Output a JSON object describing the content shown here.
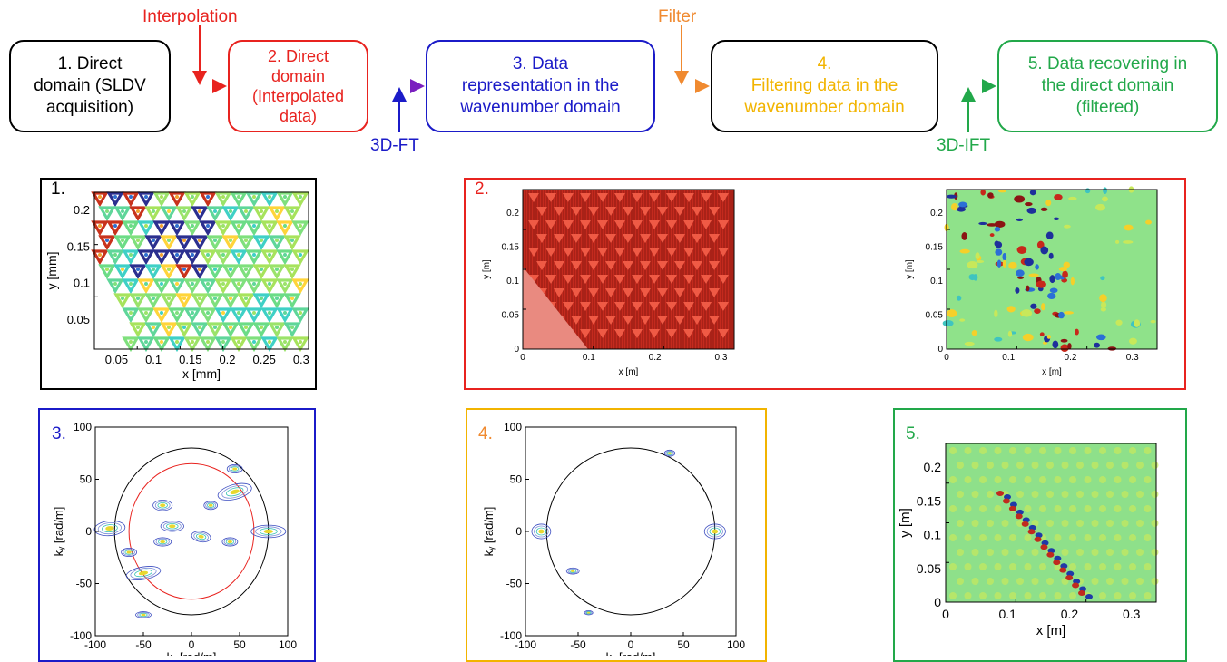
{
  "flow": {
    "boxes": [
      {
        "text": "1. Direct\ndomain (SLDV\nacquisition)",
        "color": "#000000"
      },
      {
        "text": "2. Direct\ndomain\n(Interpolated\ndata)",
        "color": "#e8231f"
      },
      {
        "text": "3. Data\nrepresentation in the\nwavenumber domain",
        "color": "#1b1bc8"
      },
      {
        "text": "4.\nFiltering data in the\nwavenumber domain",
        "color": "#f2b400",
        "border": "#000000"
      },
      {
        "text": "5. Data recovering in\nthe direct domain\n(filtered)",
        "color": "#22a84a"
      }
    ],
    "labels": {
      "interpolation": "Interpolation",
      "filter": "Filter",
      "ft": "3D-FT",
      "ift": "3D-IFT"
    },
    "colors": {
      "red": "#e8231f",
      "orange": "#f08a30",
      "blue": "#1b1bc8",
      "green": "#22a84a",
      "purple": "#7a1fbf"
    }
  },
  "panels": {
    "p1": {
      "number": "1.",
      "xlabel": "x [mm]",
      "ylabel": "y [mm]",
      "xticks": [
        "0.05",
        "0.1",
        "0.15",
        "0.2",
        "0.25",
        "0.3"
      ],
      "yticks": [
        "0.05",
        "0.1",
        "0.15",
        "0.2"
      ]
    },
    "p2": {
      "number": "2.",
      "left": {
        "xlabel": "x [m]",
        "ylabel": "y [m]",
        "xticks": [
          "0",
          "0.1",
          "0.2",
          "0.3"
        ],
        "yticks": [
          "0",
          "0.05",
          "0.1",
          "0.15",
          "0.2"
        ]
      },
      "right": {
        "xlabel": "x [m]",
        "ylabel": "y [m]",
        "xticks": [
          "0",
          "0.1",
          "0.2",
          "0.3"
        ],
        "yticks": [
          "0",
          "0.05",
          "0.1",
          "0.15",
          "0.2"
        ]
      }
    },
    "p3": {
      "number": "3.",
      "xlabel": "kₓ [rad/m]",
      "ylabel": "kᵧ [rad/m]",
      "xticks": [
        "-100",
        "-50",
        "0",
        "50",
        "100"
      ],
      "yticks": [
        "-100",
        "-50",
        "0",
        "50",
        "100"
      ],
      "outer_circle_radius": 80,
      "inner_circle_radius": 65
    },
    "p4": {
      "number": "4.",
      "xlabel": "kₓ [rad/m]",
      "ylabel": "kᵧ [rad/m]",
      "xticks": [
        "-100",
        "-50",
        "0",
        "50",
        "100"
      ],
      "yticks": [
        "-100",
        "-50",
        "0",
        "50",
        "100"
      ],
      "circle_radius": 80
    },
    "p5": {
      "number": "5.",
      "xlabel": "x [m]",
      "ylabel": "y [m]",
      "xticks": [
        "0",
        "0.1",
        "0.2",
        "0.3"
      ],
      "yticks": [
        "0",
        "0.05",
        "0.1",
        "0.15",
        "0.2"
      ]
    }
  }
}
